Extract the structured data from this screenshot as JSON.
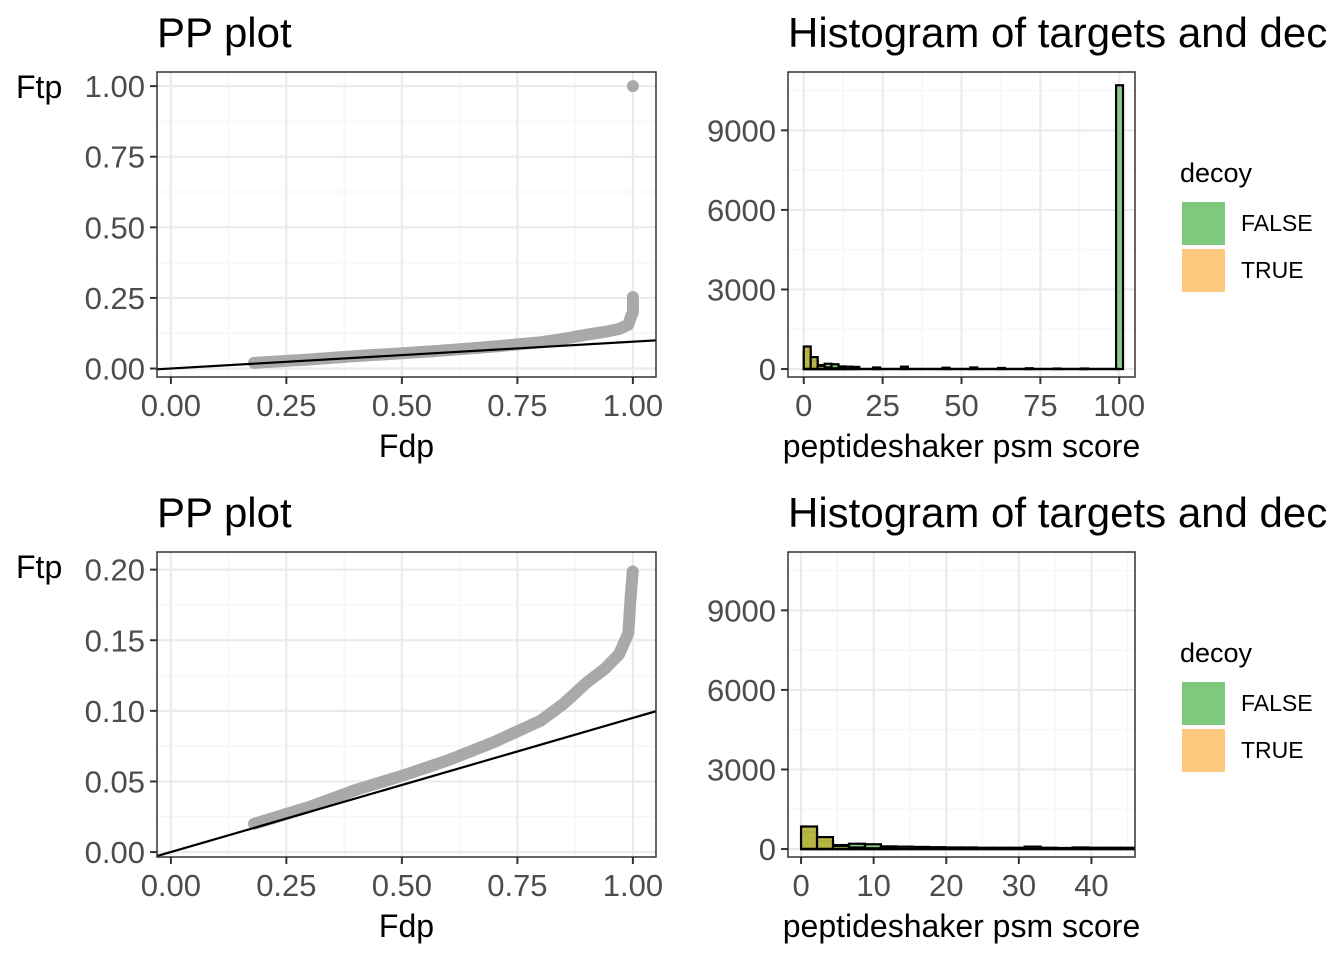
{
  "colors": {
    "target": "#7FC97F",
    "decoy": "#FDC97F",
    "overlap": "#B8B440",
    "points": "#A9A9A9",
    "reference_line": "#000000",
    "grid_major": "#EBEBEB",
    "grid_minor": "#F5F5F5",
    "panel_border": "#333333"
  },
  "chart_data": [
    {
      "type": "scatter",
      "title": "PP plot",
      "xlabel": "Fdp",
      "ylabel": "Ftp",
      "xlim": [
        -0.03,
        1.05
      ],
      "ylim": [
        -0.03,
        1.05
      ],
      "xticks": [
        0,
        0.25,
        0.5,
        0.75,
        1
      ],
      "xtick_labels": [
        "0.00",
        "0.25",
        "0.50",
        "0.75",
        "1.00"
      ],
      "yticks": [
        0,
        0.25,
        0.5,
        0.75,
        1
      ],
      "ytick_labels": [
        "0.00",
        "0.25",
        "0.50",
        "0.75",
        "1.00"
      ],
      "grid": true,
      "reference_line": {
        "intercept": 0,
        "slope": 0.095
      },
      "curve": [
        [
          0.18,
          0.02
        ],
        [
          0.25,
          0.027
        ],
        [
          0.3,
          0.032
        ],
        [
          0.4,
          0.044
        ],
        [
          0.5,
          0.054
        ],
        [
          0.6,
          0.065
        ],
        [
          0.7,
          0.078
        ],
        [
          0.8,
          0.093
        ],
        [
          0.85,
          0.105
        ],
        [
          0.9,
          0.12
        ],
        [
          0.94,
          0.13
        ],
        [
          0.97,
          0.14
        ],
        [
          0.99,
          0.155
        ],
        [
          0.995,
          0.18
        ],
        [
          1.0,
          0.2
        ],
        [
          1.0,
          0.26
        ],
        [
          1.0,
          1.0
        ]
      ]
    },
    {
      "type": "bar",
      "title": "Histogram of targets and dec",
      "xlabel": "peptideshaker psm score",
      "ylabel": "",
      "xlim": [
        -5,
        105
      ],
      "ylim": [
        -300,
        11200
      ],
      "xticks": [
        0,
        25,
        50,
        75,
        100
      ],
      "xtick_labels": [
        "0",
        "25",
        "50",
        "75",
        "100"
      ],
      "yticks": [
        0,
        3000,
        6000,
        9000
      ],
      "ytick_labels": [
        "0",
        "3000",
        "6000",
        "9000"
      ],
      "grid": true,
      "bin_width": 2.2,
      "legend": {
        "title": "decoy",
        "entries": [
          "FALSE",
          "TRUE"
        ],
        "position": "right"
      },
      "series": [
        {
          "name": "FALSE",
          "bins": [
            [
              0,
              650
            ],
            [
              2.2,
              300
            ],
            [
              4.4,
              150
            ],
            [
              6.6,
              200
            ],
            [
              8.8,
              180
            ],
            [
              11,
              100
            ],
            [
              13.2,
              90
            ],
            [
              15.4,
              80
            ],
            [
              22,
              60
            ],
            [
              30.8,
              90
            ],
            [
              44,
              50
            ],
            [
              52.8,
              60
            ],
            [
              61.6,
              40
            ],
            [
              70.4,
              30
            ],
            [
              79.2,
              20
            ],
            [
              88,
              20
            ],
            [
              99,
              10700
            ]
          ]
        },
        {
          "name": "TRUE",
          "bins": [
            [
              0,
              850
            ],
            [
              2.2,
              450
            ],
            [
              4.4,
              120
            ],
            [
              6.6,
              60
            ],
            [
              8.8,
              30
            ],
            [
              11,
              20
            ]
          ]
        }
      ]
    },
    {
      "type": "scatter",
      "title": "PP plot",
      "xlabel": "Fdp",
      "ylabel": "Ftp",
      "xlim": [
        -0.03,
        1.05
      ],
      "ylim": [
        -0.0035,
        0.2125
      ],
      "xticks": [
        0,
        0.25,
        0.5,
        0.75,
        1
      ],
      "xtick_labels": [
        "0.00",
        "0.25",
        "0.50",
        "0.75",
        "1.00"
      ],
      "yticks": [
        0,
        0.05,
        0.1,
        0.15,
        0.2
      ],
      "ytick_labels": [
        "0.00",
        "0.05",
        "0.10",
        "0.15",
        "0.20"
      ],
      "grid": true,
      "reference_line": {
        "intercept": 0,
        "slope": 0.095
      },
      "curve": [
        [
          0.18,
          0.02
        ],
        [
          0.25,
          0.027
        ],
        [
          0.3,
          0.032
        ],
        [
          0.4,
          0.044
        ],
        [
          0.5,
          0.054
        ],
        [
          0.6,
          0.065
        ],
        [
          0.7,
          0.078
        ],
        [
          0.8,
          0.093
        ],
        [
          0.85,
          0.105
        ],
        [
          0.9,
          0.12
        ],
        [
          0.94,
          0.13
        ],
        [
          0.97,
          0.14
        ],
        [
          0.99,
          0.155
        ],
        [
          0.995,
          0.18
        ],
        [
          1.0,
          0.2
        ]
      ]
    },
    {
      "type": "bar",
      "title": "Histogram of targets and dec",
      "xlabel": "peptideshaker psm score",
      "ylabel": "",
      "xlim": [
        -1.8,
        46
      ],
      "ylim": [
        -300,
        11200
      ],
      "xticks": [
        0,
        10,
        20,
        30,
        40
      ],
      "xtick_labels": [
        "0",
        "10",
        "20",
        "30",
        "40"
      ],
      "yticks": [
        0,
        3000,
        6000,
        9000
      ],
      "ytick_labels": [
        "0",
        "3000",
        "6000",
        "9000"
      ],
      "grid": true,
      "bin_width": 2.2,
      "legend": {
        "title": "decoy",
        "entries": [
          "FALSE",
          "TRUE"
        ],
        "position": "right"
      },
      "series": [
        {
          "name": "FALSE",
          "bins": [
            [
              0,
              650
            ],
            [
              2.2,
              300
            ],
            [
              4.4,
              150
            ],
            [
              6.6,
              200
            ],
            [
              8.8,
              180
            ],
            [
              11,
              100
            ],
            [
              13.2,
              90
            ],
            [
              15.4,
              80
            ],
            [
              17.6,
              70
            ],
            [
              19.8,
              60
            ],
            [
              22,
              60
            ],
            [
              24.2,
              50
            ],
            [
              26.4,
              50
            ],
            [
              28.6,
              50
            ],
            [
              30.8,
              90
            ],
            [
              33,
              50
            ],
            [
              35.2,
              40
            ],
            [
              37.4,
              60
            ],
            [
              39.6,
              50
            ],
            [
              41.8,
              50
            ],
            [
              44,
              50
            ]
          ]
        },
        {
          "name": "TRUE",
          "bins": [
            [
              0,
              850
            ],
            [
              2.2,
              450
            ],
            [
              4.4,
              120
            ],
            [
              6.6,
              60
            ],
            [
              8.8,
              30
            ],
            [
              11,
              20
            ]
          ]
        }
      ]
    }
  ]
}
